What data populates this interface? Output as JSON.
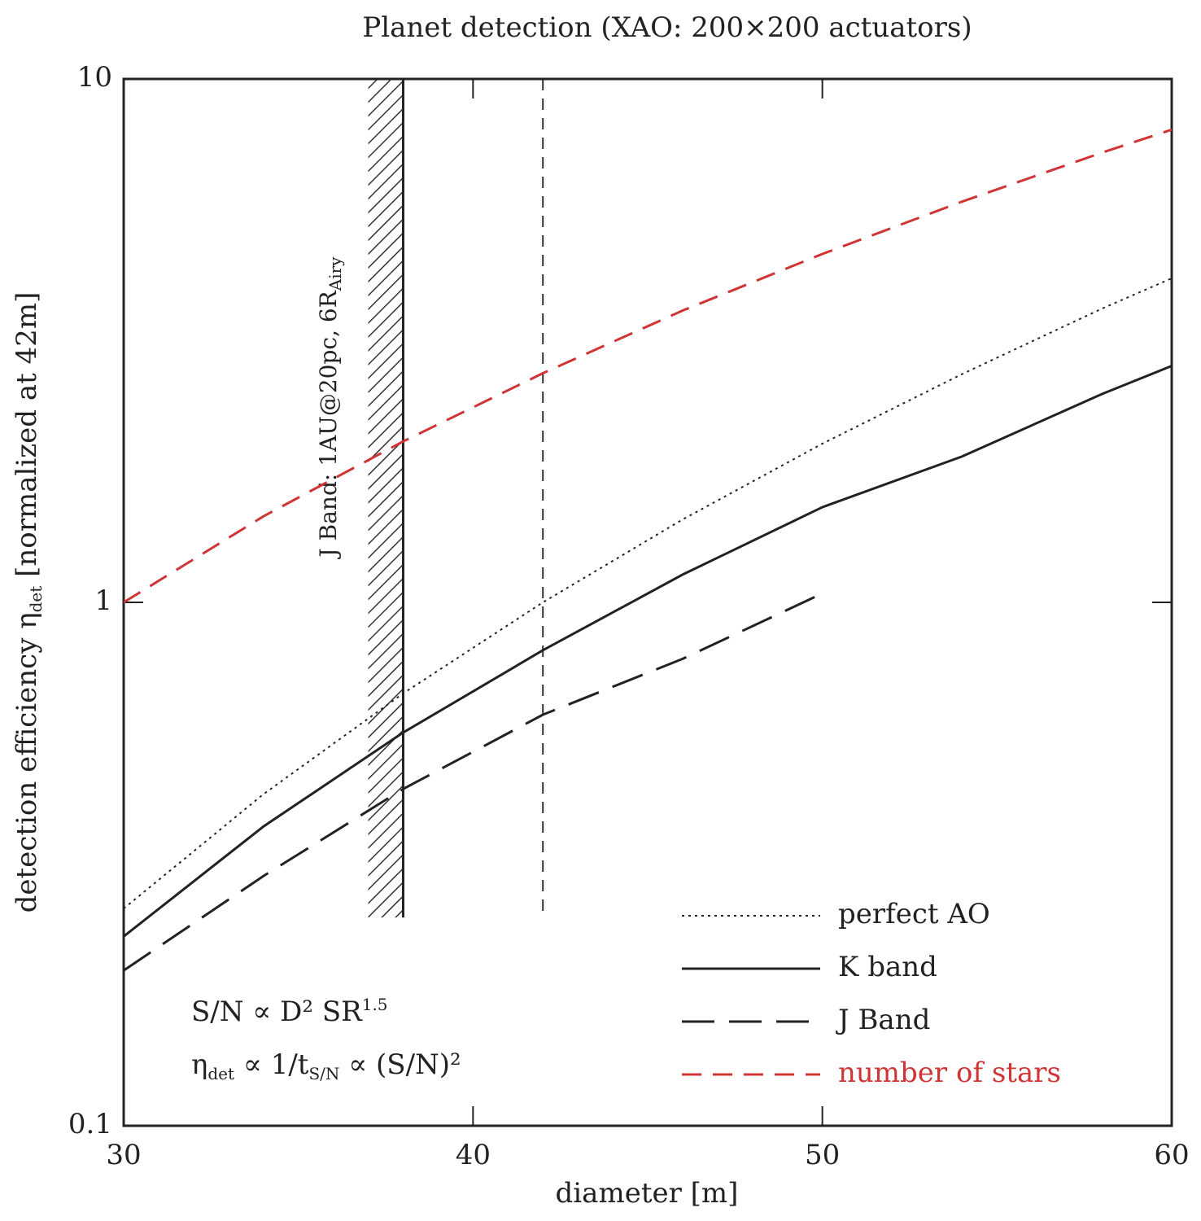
{
  "chart_data": {
    "type": "line",
    "title": "Planet detection (XAO: 200×200 actuators)",
    "x_label": "diameter [m]",
    "y_label": {
      "main": "detection efficiency η",
      "sub": "det",
      "tail": " [normalized at 42m]"
    },
    "x": [
      30,
      34,
      38,
      42,
      46,
      50,
      54,
      58,
      60
    ],
    "series": [
      {
        "name": "perfect AO",
        "color": "#222222",
        "line_style": "dotted",
        "values": [
          0.26,
          0.43,
          0.67,
          1.0,
          1.44,
          2.01,
          2.73,
          3.64,
          4.16
        ]
      },
      {
        "name": "K band",
        "color": "#222222",
        "line_style": "solid",
        "values": [
          0.23,
          0.373,
          0.564,
          0.81,
          1.13,
          1.52,
          1.9,
          2.5,
          2.83
        ]
      },
      {
        "name": "J Band",
        "color": "#222222",
        "line_style": "long-dash",
        "values": [
          0.198,
          0.3,
          0.44,
          0.61,
          0.78,
          1.04,
          null,
          null,
          null
        ]
      },
      {
        "name": "number of stars",
        "color": "#d03535",
        "line_style": "dash",
        "values": [
          1.0,
          1.46,
          2.03,
          2.74,
          3.61,
          4.63,
          5.83,
          7.23,
          8.0
        ]
      }
    ],
    "xlim": [
      30,
      60
    ],
    "xticks": [
      30,
      40,
      50,
      60
    ],
    "ylim": [
      0.1,
      10
    ],
    "yticks": [
      0.1,
      1,
      10
    ],
    "log_y": true,
    "legend": "lower right",
    "shaded_region": {
      "x": [
        37,
        38
      ],
      "y_bottom": 0.25,
      "label": {
        "main": "J Band: 1AU@20pc, 6R",
        "sub": "Airy"
      }
    },
    "vline": {
      "x": 42,
      "y_bottom": 0.25
    },
    "annotations": [
      {
        "main": "S/N ∝ D² SR",
        "sup": "1.5"
      },
      {
        "eta": "η",
        "eta_sub": "det",
        "mid": " ∝ 1/t",
        "t_sub": "S/N",
        "tail": " ∝ (S/N)²"
      }
    ]
  }
}
